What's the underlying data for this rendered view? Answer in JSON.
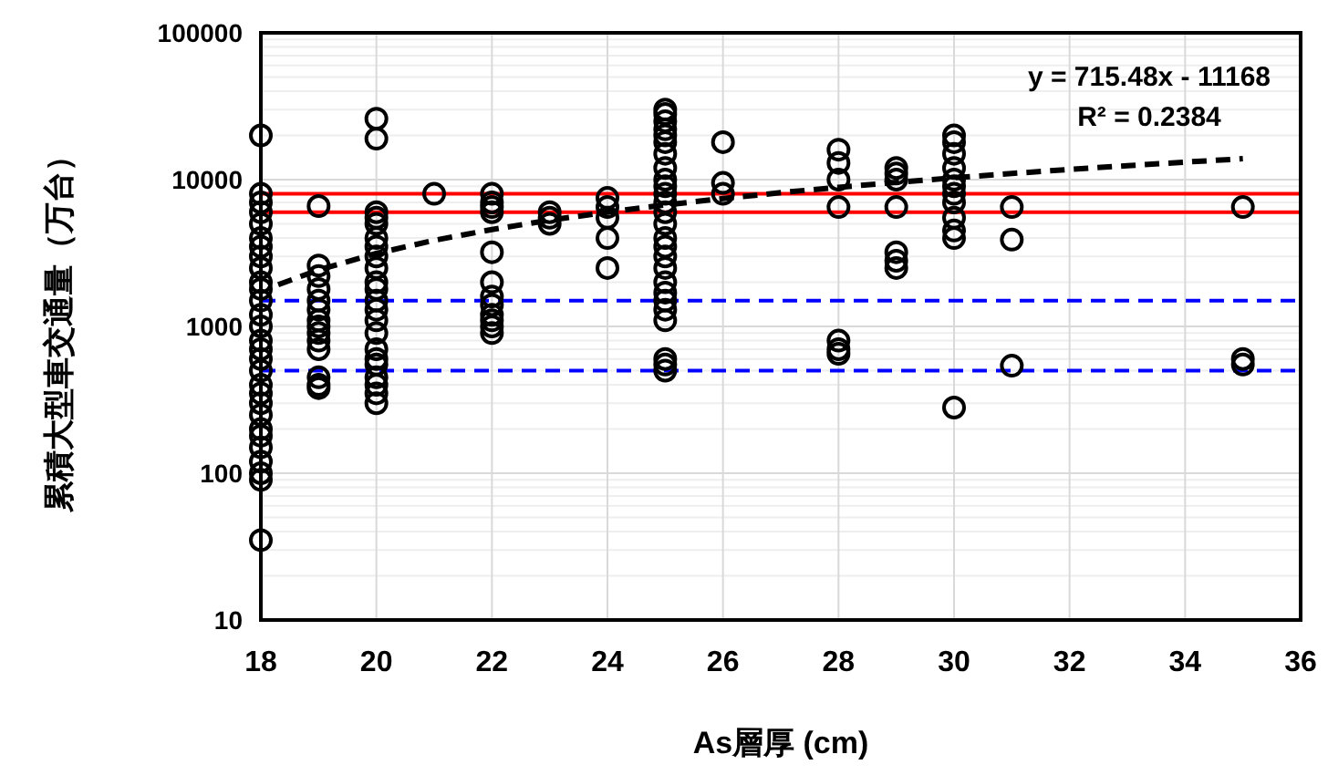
{
  "chart_data": {
    "type": "scatter",
    "xlabel": "As層厚 (cm)",
    "ylabel": "累積大型車交通量（万台）",
    "xlim": [
      18,
      36
    ],
    "xticks": [
      18,
      20,
      22,
      24,
      26,
      28,
      30,
      32,
      34,
      36
    ],
    "ylim": [
      10,
      100000
    ],
    "yticks": [
      10,
      100,
      1000,
      10000,
      100000
    ],
    "log": "y",
    "grid": true,
    "series": [
      {
        "color": "#000000",
        "marker": "circle",
        "x": [
          18,
          18,
          18,
          18,
          18,
          18,
          18,
          18,
          18,
          18,
          18,
          18,
          18,
          18,
          18,
          18,
          18,
          18,
          18,
          18,
          18,
          18,
          18,
          18,
          18,
          18,
          18,
          18,
          18,
          19,
          19,
          19,
          19,
          19,
          19,
          19,
          19,
          19,
          19,
          19,
          19,
          19,
          19,
          20,
          20,
          20,
          20,
          20,
          20,
          20,
          20,
          20,
          20,
          20,
          20,
          20,
          20,
          20,
          20,
          20,
          20,
          20,
          20,
          20,
          20,
          21,
          22,
          22,
          22,
          22,
          22,
          22,
          22,
          22,
          22,
          22,
          22,
          22,
          23,
          23,
          23,
          24,
          24,
          24,
          24,
          24,
          25,
          25,
          25,
          25,
          25,
          25,
          25,
          25,
          25,
          25,
          25,
          25,
          25,
          25,
          25,
          25,
          25,
          25,
          25,
          25,
          25,
          25,
          25,
          25,
          25,
          25,
          26,
          26,
          26,
          28,
          28,
          28,
          28,
          28,
          28,
          28,
          29,
          29,
          29,
          29,
          29,
          29,
          29,
          30,
          30,
          30,
          30,
          30,
          30,
          30,
          30,
          30,
          30,
          30,
          30,
          31,
          31,
          31,
          35,
          35,
          35
        ],
        "values": [
          35,
          90,
          100,
          120,
          150,
          180,
          200,
          250,
          300,
          350,
          400,
          500,
          600,
          700,
          800,
          1000,
          1200,
          1500,
          1800,
          2000,
          2500,
          3000,
          3500,
          4000,
          5000,
          6000,
          7000,
          8000,
          20000,
          6600,
          2600,
          2200,
          1800,
          1500,
          1300,
          1100,
          1000,
          900,
          800,
          700,
          450,
          400,
          380,
          26000,
          19000,
          6000,
          5500,
          5000,
          4000,
          3500,
          3000,
          2500,
          2000,
          1800,
          1500,
          1300,
          1100,
          900,
          700,
          600,
          550,
          450,
          400,
          350,
          300,
          8000,
          8000,
          7000,
          6500,
          6000,
          3200,
          2000,
          1600,
          1400,
          1200,
          1100,
          1000,
          900,
          6000,
          5500,
          5000,
          7500,
          6500,
          5500,
          4000,
          2500,
          30000,
          28000,
          25000,
          22000,
          20000,
          18000,
          15000,
          12000,
          10000,
          9000,
          8000,
          7000,
          6000,
          5000,
          4000,
          3500,
          3000,
          2500,
          2000,
          1700,
          1500,
          1300,
          1100,
          600,
          550,
          500,
          18000,
          9500,
          8000,
          16000,
          13000,
          10000,
          6500,
          800,
          700,
          650,
          12000,
          11000,
          10000,
          6500,
          3200,
          2800,
          2500,
          20000,
          18000,
          15000,
          12000,
          10000,
          9000,
          8000,
          7000,
          5500,
          4500,
          4000,
          280,
          6500,
          3900,
          540,
          6500,
          600,
          550
        ]
      },
      {
        "type": "line",
        "color": "#000000",
        "line_style": "dashed",
        "x": [
          18.3,
          19,
          20,
          21,
          22,
          23,
          24,
          25,
          26,
          27,
          28,
          29,
          30,
          31,
          32,
          33,
          34,
          35
        ],
        "values": [
          1925,
          2426,
          3142,
          3857,
          4573,
          5288,
          6004,
          6719,
          7434,
          8150,
          8865,
          9581,
          10296,
          11012,
          11727,
          12443,
          13158,
          13874
        ]
      }
    ],
    "ref_lines": [
      {
        "axis": "y",
        "value": 8000,
        "color": "#ff0000",
        "line_style": "solid"
      },
      {
        "axis": "y",
        "value": 6000,
        "color": "#ff0000",
        "line_style": "solid"
      },
      {
        "axis": "y",
        "value": 1500,
        "color": "#0000ff",
        "line_style": "dashed"
      },
      {
        "axis": "y",
        "value": 500,
        "color": "#0000ff",
        "line_style": "dashed"
      }
    ],
    "annotations": [
      "y = 715.48x - 11168",
      "R² = 0.2384"
    ]
  }
}
